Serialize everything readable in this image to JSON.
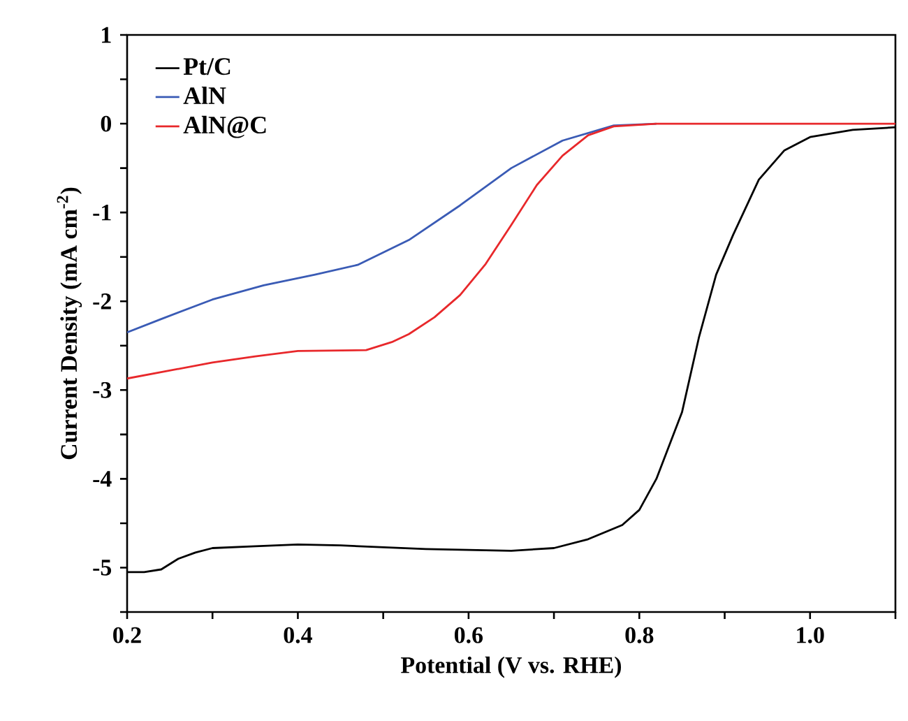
{
  "chart_data": {
    "type": "line",
    "xlabel": "Potential (V vs. RHE)",
    "ylabel": "Current Density (mA cm$^{-2}$)",
    "xlim": [
      0.2,
      1.1
    ],
    "ylim": [
      -5.5,
      1
    ],
    "xticks": [
      0.2,
      {
        "value": 0.3,
        "label": null
      },
      0.4,
      {
        "value": 0.5,
        "label": null
      },
      0.6,
      {
        "value": 0.7,
        "label": null
      },
      0.8,
      {
        "value": 0.9,
        "label": null
      },
      {
        "value": 1.0,
        "label": "1.0"
      },
      {
        "value": 1.1,
        "label": null
      }
    ],
    "yticks": [
      {
        "value": -5.5,
        "label": null
      },
      -5,
      {
        "value": -4.5,
        "label": null
      },
      -4,
      {
        "value": -3.5,
        "label": null
      },
      -3,
      {
        "value": -2.5,
        "label": null
      },
      -2,
      {
        "value": -1.5,
        "label": null
      },
      -1,
      {
        "value": -0.5,
        "label": null
      },
      0,
      {
        "value": 0.5,
        "label": null
      },
      1
    ],
    "legend": "top left",
    "line_style": "solid",
    "marker": "none",
    "grid": false,
    "series": [
      {
        "name": "Pt/C",
        "color": "#000000",
        "x": [
          0.2,
          0.22,
          0.24,
          0.26,
          0.28,
          0.3,
          0.35,
          0.4,
          0.45,
          0.5,
          0.55,
          0.6,
          0.65,
          0.7,
          0.74,
          0.78,
          0.8,
          0.82,
          0.85,
          0.87,
          0.89,
          0.91,
          0.94,
          0.97,
          1.0,
          1.05,
          1.1
        ],
        "values": [
          -5.05,
          -5.05,
          -5.02,
          -4.9,
          -4.83,
          -4.78,
          -4.76,
          -4.74,
          -4.75,
          -4.77,
          -4.79,
          -4.8,
          -4.81,
          -4.78,
          -4.68,
          -4.52,
          -4.35,
          -4.0,
          -3.25,
          -2.4,
          -1.7,
          -1.25,
          -0.63,
          -0.3,
          -0.15,
          -0.07,
          -0.04
        ]
      },
      {
        "name": "AlN",
        "color": "#3a5bb5",
        "x": [
          0.2,
          0.24,
          0.3,
          0.36,
          0.42,
          0.47,
          0.53,
          0.59,
          0.65,
          0.71,
          0.77,
          0.82
        ],
        "values": [
          -2.35,
          -2.2,
          -1.98,
          -1.82,
          -1.7,
          -1.59,
          -1.31,
          -0.92,
          -0.5,
          -0.19,
          -0.02,
          0
        ]
      },
      {
        "name": "AlN@C",
        "color": "#e8282b",
        "x": [
          0.2,
          0.25,
          0.3,
          0.35,
          0.4,
          0.48,
          0.51,
          0.53,
          0.56,
          0.59,
          0.62,
          0.65,
          0.68,
          0.71,
          0.74,
          0.77,
          0.82,
          0.9,
          1.0,
          1.1
        ],
        "values": [
          -2.87,
          -2.78,
          -2.69,
          -2.62,
          -2.56,
          -2.55,
          -2.46,
          -2.37,
          -2.18,
          -1.93,
          -1.58,
          -1.14,
          -0.69,
          -0.36,
          -0.13,
          -0.03,
          0,
          0,
          0,
          0
        ]
      }
    ]
  }
}
